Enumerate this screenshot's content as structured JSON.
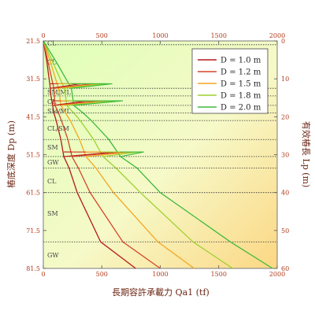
{
  "chart_data": {
    "type": "line",
    "title": "",
    "xlabel": "長期容許承載力 Qa1 (tf)",
    "ylabel_left": "樁底深度 Dp (m)",
    "ylabel_right": "有效樁長 Lp (m)",
    "xlim": [
      0,
      2000
    ],
    "ylim_left": [
      21.5,
      81.5
    ],
    "ylim_right": [
      0,
      60
    ],
    "x_ticks": [
      "0",
      "500",
      "1000",
      "1500",
      "2000"
    ],
    "y_ticks_left": [
      "21.5",
      "31.5",
      "41.5",
      "51.5",
      "61.5",
      "71.5",
      "81.5"
    ],
    "y_ticks_right": [
      "0",
      "10",
      "20",
      "30",
      "40",
      "50",
      "60"
    ],
    "legend_position": "top-right",
    "soil_layers": [
      {
        "label": "CL",
        "depth": 22
      },
      {
        "label": "CL",
        "depth": 27
      },
      {
        "label": "SM/ML",
        "depth": 35
      },
      {
        "label": "CL",
        "depth": 37.5
      },
      {
        "label": "SM/ML",
        "depth": 40
      },
      {
        "label": "CL/SM",
        "depth": 44.5
      },
      {
        "label": "SM",
        "depth": 49.5
      },
      {
        "label": "GW",
        "depth": 53.5
      },
      {
        "label": "CL",
        "depth": 58.5
      },
      {
        "label": "SM",
        "depth": 67
      },
      {
        "label": "GW",
        "depth": 78
      }
    ],
    "layer_boundaries": [
      22.5,
      34,
      36,
      38.5,
      40.5,
      42.5,
      47.5,
      52,
      55,
      61.5,
      74.5
    ],
    "series": [
      {
        "name": "D = 1.0 m",
        "color": "#b31b1b",
        "points": [
          [
            0,
            21.5
          ],
          [
            30,
            27
          ],
          [
            60,
            34
          ],
          [
            65,
            36
          ],
          [
            80,
            38.5
          ],
          [
            90,
            40.5
          ],
          [
            110,
            42.5
          ],
          [
            150,
            47.5
          ],
          [
            175,
            52
          ],
          [
            220,
            55
          ],
          [
            290,
            61.5
          ],
          [
            490,
            74.5
          ],
          [
            790,
            81.5
          ]
        ]
      },
      {
        "name": "D = 1.2 m",
        "color": "#d6452a",
        "points": [
          [
            0,
            21.5
          ],
          [
            40,
            27
          ],
          [
            90,
            34
          ],
          [
            95,
            36
          ],
          [
            100,
            38.5
          ],
          [
            130,
            40.5
          ],
          [
            155,
            42.5
          ],
          [
            210,
            47.5
          ],
          [
            245,
            52
          ],
          [
            300,
            55
          ],
          [
            400,
            61.5
          ],
          [
            680,
            74.5
          ],
          [
            1000,
            81.5
          ]
        ]
      },
      {
        "name": "D = 1.5 m",
        "color": "#f4a622",
        "points": [
          [
            0,
            21.5
          ],
          [
            60,
            27
          ],
          [
            130,
            34
          ],
          [
            140,
            36
          ],
          [
            150,
            38.5
          ],
          [
            190,
            40.5
          ],
          [
            230,
            42.5
          ],
          [
            310,
            47.5
          ],
          [
            365,
            52
          ],
          [
            450,
            55
          ],
          [
            600,
            61.5
          ],
          [
            980,
            74.5
          ],
          [
            1290,
            81.5
          ]
        ]
      },
      {
        "name": "D = 1.8 m",
        "color": "#9cd12f",
        "points": [
          [
            0,
            21.5
          ],
          [
            80,
            27
          ],
          [
            180,
            34
          ],
          [
            190,
            36
          ],
          [
            200,
            38.5
          ],
          [
            260,
            40.5
          ],
          [
            315,
            42.5
          ],
          [
            430,
            47.5
          ],
          [
            510,
            52
          ],
          [
            620,
            55
          ],
          [
            830,
            61.5
          ],
          [
            1280,
            74.5
          ],
          [
            1620,
            81.5
          ]
        ]
      },
      {
        "name": "D = 2.0 m",
        "color": "#3fba3f",
        "points": [
          [
            0,
            21.5
          ],
          [
            110,
            27
          ],
          [
            240,
            34
          ],
          [
            250,
            36
          ],
          [
            260,
            38.5
          ],
          [
            340,
            40.5
          ],
          [
            410,
            42.5
          ],
          [
            560,
            47.5
          ],
          [
            660,
            52
          ],
          [
            800,
            55
          ],
          [
            1000,
            61.5
          ],
          [
            1600,
            74.5
          ],
          [
            1960,
            81.5
          ]
        ]
      }
    ],
    "spikes": [
      {
        "depth": 34,
        "values": [
          320,
          420,
          490,
          540,
          590
        ]
      },
      {
        "depth": 38.5,
        "values": [
          380,
          480,
          560,
          620,
          680
        ]
      },
      {
        "depth": 52,
        "values": [
          620,
          700,
          760,
          810,
          860
        ]
      }
    ]
  }
}
